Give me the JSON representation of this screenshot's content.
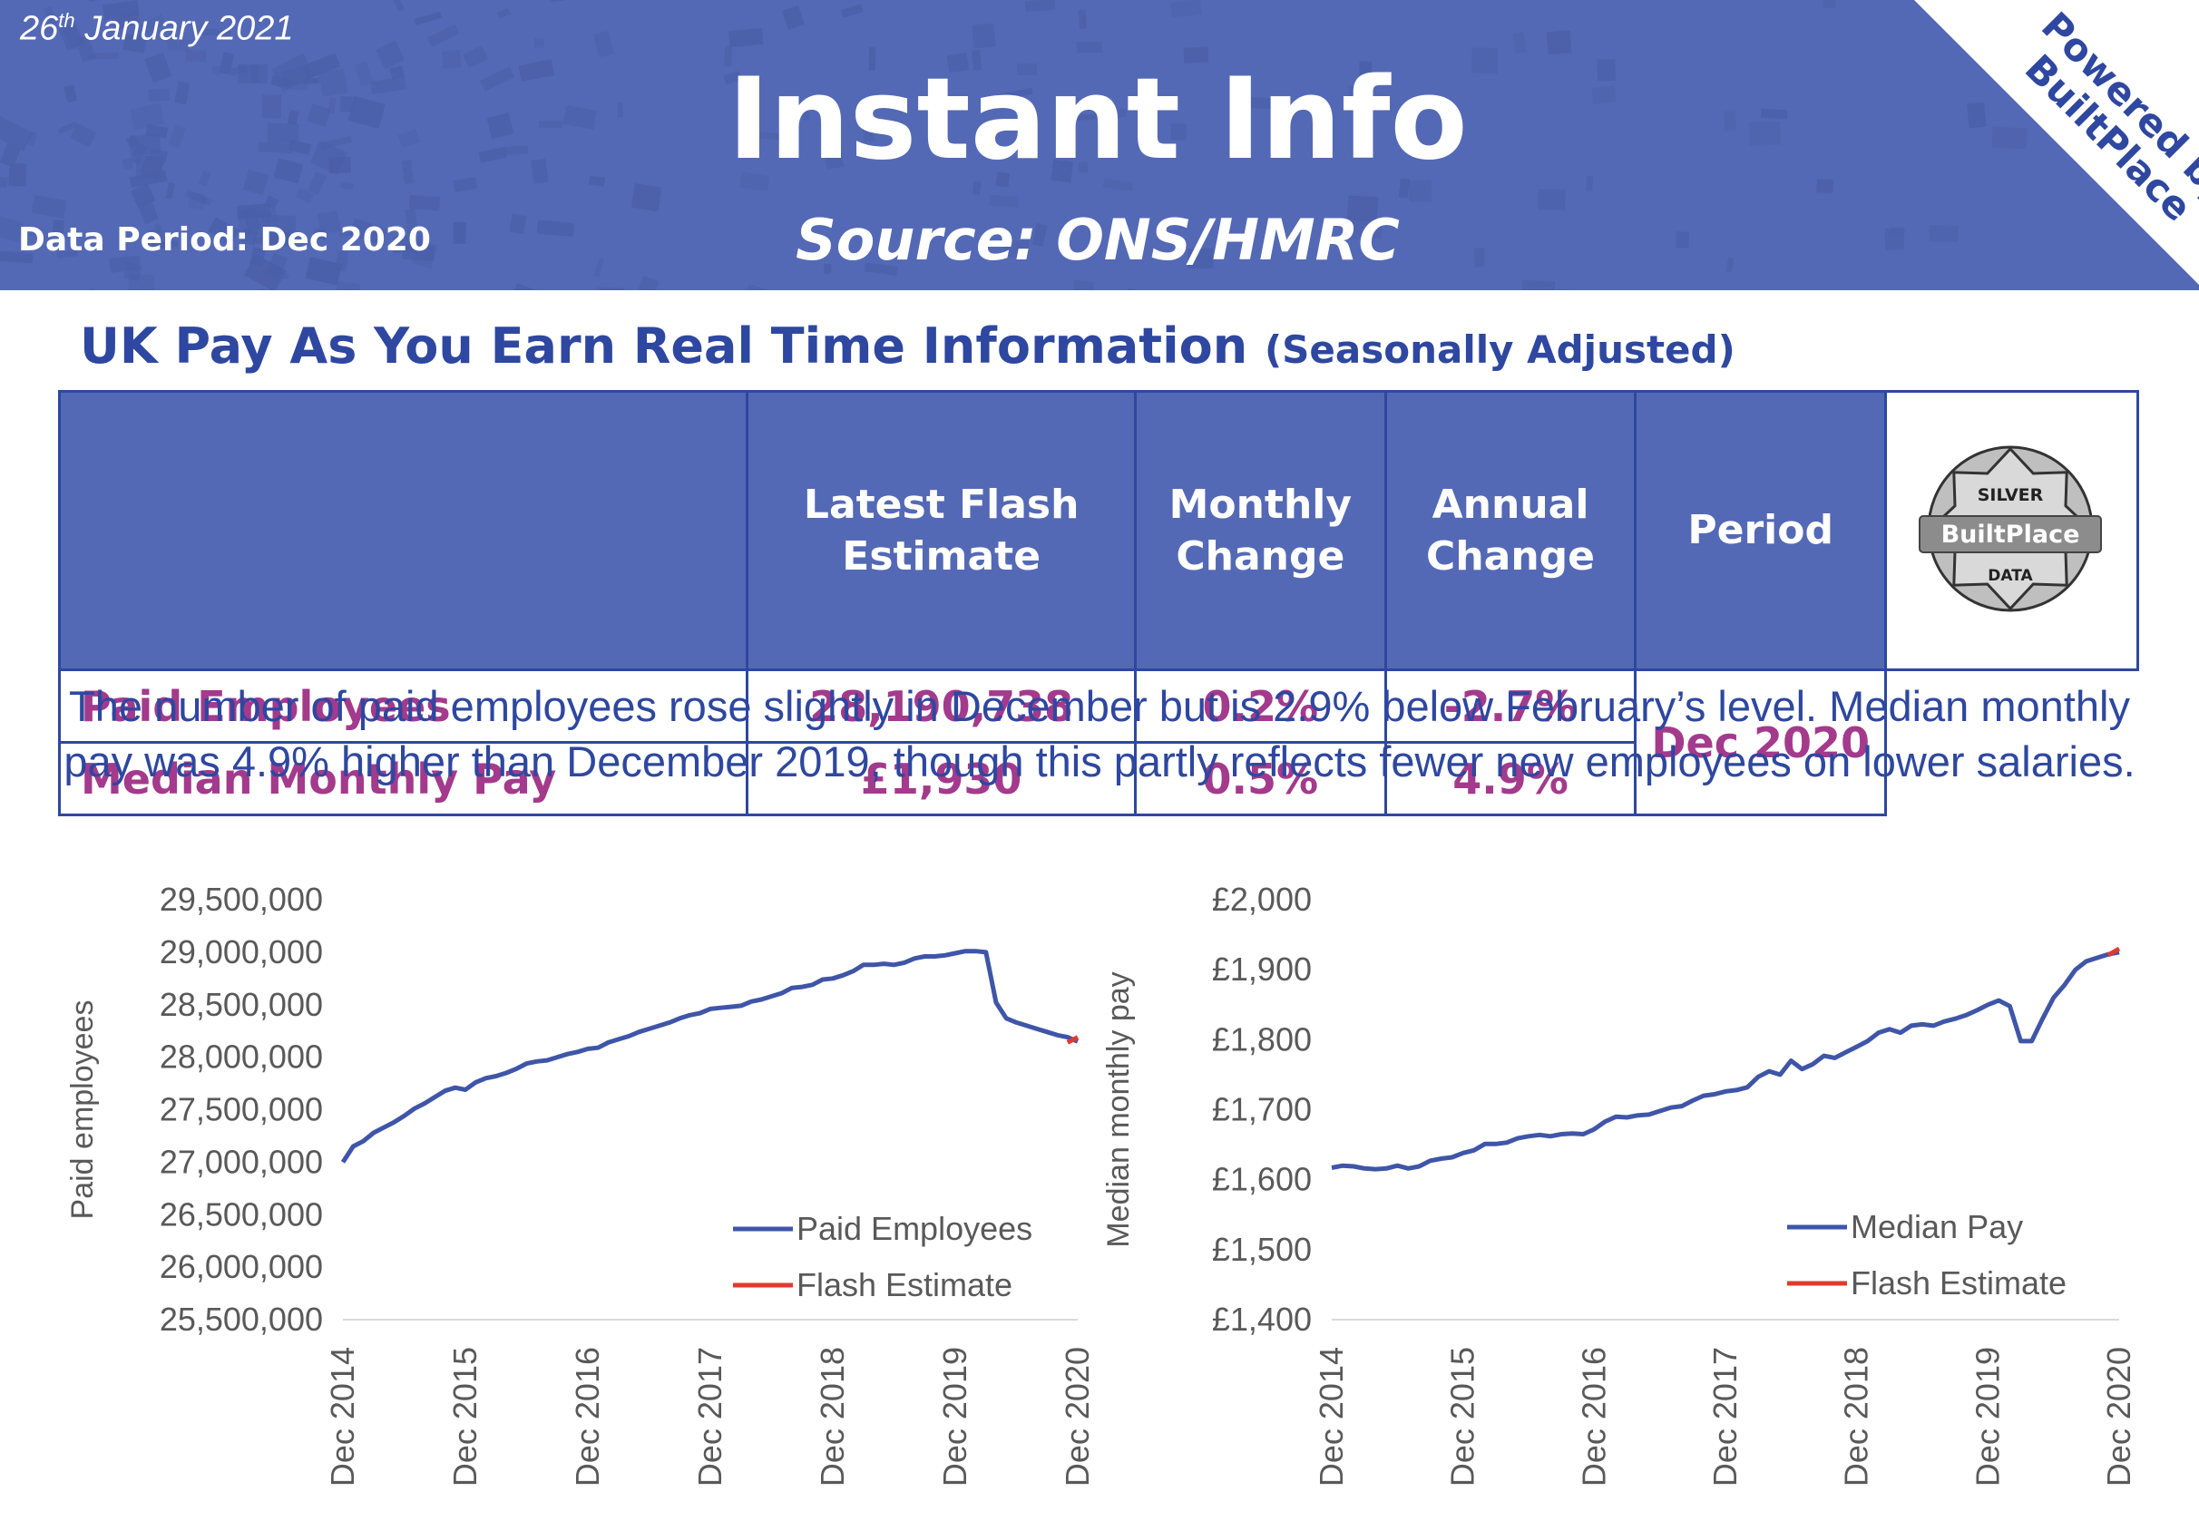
{
  "header": {
    "date_day": "26",
    "date_suffix": "th",
    "date_rest": " January 2021",
    "title": "Instant Info",
    "source": "Source: ONS/HMRC",
    "data_period": "Data Period: Dec 2020",
    "powered_line1": "Powered by",
    "powered_line2": "BuiltPlace",
    "banner_color": "#5469b5",
    "accent_color": "#2e47a0"
  },
  "section": {
    "title": "UK Pay As You Earn Real Time Information",
    "subtitle": "(Seasonally Adjusted)"
  },
  "table": {
    "headers": [
      "",
      "Latest Flash Estimate",
      "Monthly Change",
      "Annual Change",
      "Period"
    ],
    "rows": [
      {
        "label": "Paid Employees",
        "estimate": "28,190,738",
        "monthly": "0.2%",
        "annual": "-2.7%"
      },
      {
        "label": "Median Monthly Pay",
        "estimate": "£1,930",
        "monthly": "0.5%",
        "annual": "4.9%"
      }
    ],
    "period": "Dec 2020",
    "value_color": "#a33a8c",
    "badge": {
      "top": "SILVER",
      "middle": "BuiltPlace",
      "bottom": "DATA",
      "icon": "silver-star-badge-icon"
    }
  },
  "summary": "The number of paid employees rose slightly in December but is 2.9% below February’s level. Median monthly pay was 4.9% higher than December 2019, though this partly reflects fewer new employees on lower salaries.",
  "chart_data": [
    {
      "type": "line",
      "ylabel": "Paid employees",
      "ylim": [
        25500000,
        29500000
      ],
      "yticks": [
        25500000,
        26000000,
        26500000,
        27000000,
        27500000,
        28000000,
        28500000,
        29000000,
        29500000
      ],
      "ytick_labels": [
        "25,500,000",
        "26,000,000",
        "26,500,000",
        "27,000,000",
        "27,500,000",
        "28,000,000",
        "28,500,000",
        "29,000,000",
        "29,500,000"
      ],
      "xlim": [
        "2014-12",
        "2020-12"
      ],
      "xtick_labels": [
        "Dec 2014",
        "Dec 2015",
        "Dec 2016",
        "Dec 2017",
        "Dec 2018",
        "Dec 2019",
        "Dec 2020"
      ],
      "legend_position": "bottom-right",
      "grid": false,
      "series": [
        {
          "name": "Paid Employees",
          "color": "#3f55a8",
          "points": [
            [
              "2014-12",
              27000000
            ],
            [
              "2015-01",
              27150000
            ],
            [
              "2015-02",
              27200000
            ],
            [
              "2015-03",
              27280000
            ],
            [
              "2015-04",
              27330000
            ],
            [
              "2015-05",
              27380000
            ],
            [
              "2015-06",
              27440000
            ],
            [
              "2015-07",
              27510000
            ],
            [
              "2015-08",
              27560000
            ],
            [
              "2015-09",
              27620000
            ],
            [
              "2015-10",
              27680000
            ],
            [
              "2015-11",
              27710000
            ],
            [
              "2015-12",
              27690000
            ],
            [
              "2016-01",
              27760000
            ],
            [
              "2016-02",
              27800000
            ],
            [
              "2016-03",
              27820000
            ],
            [
              "2016-04",
              27850000
            ],
            [
              "2016-05",
              27890000
            ],
            [
              "2016-06",
              27940000
            ],
            [
              "2016-07",
              27960000
            ],
            [
              "2016-08",
              27970000
            ],
            [
              "2016-09",
              28000000
            ],
            [
              "2016-10",
              28030000
            ],
            [
              "2016-11",
              28050000
            ],
            [
              "2016-12",
              28080000
            ],
            [
              "2017-01",
              28090000
            ],
            [
              "2017-02",
              28140000
            ],
            [
              "2017-03",
              28170000
            ],
            [
              "2017-04",
              28200000
            ],
            [
              "2017-05",
              28240000
            ],
            [
              "2017-06",
              28270000
            ],
            [
              "2017-07",
              28300000
            ],
            [
              "2017-08",
              28330000
            ],
            [
              "2017-09",
              28370000
            ],
            [
              "2017-10",
              28400000
            ],
            [
              "2017-11",
              28420000
            ],
            [
              "2017-12",
              28460000
            ],
            [
              "2018-01",
              28470000
            ],
            [
              "2018-02",
              28480000
            ],
            [
              "2018-03",
              28490000
            ],
            [
              "2018-04",
              28530000
            ],
            [
              "2018-05",
              28550000
            ],
            [
              "2018-06",
              28580000
            ],
            [
              "2018-07",
              28610000
            ],
            [
              "2018-08",
              28660000
            ],
            [
              "2018-09",
              28670000
            ],
            [
              "2018-10",
              28690000
            ],
            [
              "2018-11",
              28740000
            ],
            [
              "2018-12",
              28750000
            ],
            [
              "2019-01",
              28780000
            ],
            [
              "2019-02",
              28820000
            ],
            [
              "2019-03",
              28880000
            ],
            [
              "2019-04",
              28880000
            ],
            [
              "2019-05",
              28890000
            ],
            [
              "2019-06",
              28880000
            ],
            [
              "2019-07",
              28900000
            ],
            [
              "2019-08",
              28940000
            ],
            [
              "2019-09",
              28960000
            ],
            [
              "2019-10",
              28960000
            ],
            [
              "2019-11",
              28970000
            ],
            [
              "2019-12",
              28990000
            ],
            [
              "2020-01",
              29010000
            ],
            [
              "2020-02",
              29010000
            ],
            [
              "2020-03",
              29000000
            ],
            [
              "2020-04",
              28520000
            ],
            [
              "2020-05",
              28370000
            ],
            [
              "2020-06",
              28330000
            ],
            [
              "2020-07",
              28300000
            ],
            [
              "2020-08",
              28270000
            ],
            [
              "2020-09",
              28240000
            ],
            [
              "2020-10",
              28210000
            ],
            [
              "2020-11",
              28190000
            ],
            [
              "2020-12",
              28150000
            ]
          ]
        },
        {
          "name": "Flash Estimate",
          "color": "#e03a2f",
          "points": [
            [
              "2020-11",
              28140000
            ],
            [
              "2020-12",
              28190000
            ]
          ]
        }
      ]
    },
    {
      "type": "line",
      "ylabel": "Median monthly pay",
      "ylim": [
        1400,
        2000
      ],
      "yticks": [
        1400,
        1500,
        1600,
        1700,
        1800,
        1900,
        2000
      ],
      "ytick_labels": [
        "£1,400",
        "£1,500",
        "£1,600",
        "£1,700",
        "£1,800",
        "£1,900",
        "£2,000"
      ],
      "xlim": [
        "2014-12",
        "2020-12"
      ],
      "xtick_labels": [
        "Dec 2014",
        "Dec 2015",
        "Dec 2016",
        "Dec 2017",
        "Dec 2018",
        "Dec 2019",
        "Dec 2020"
      ],
      "legend_position": "bottom-right",
      "grid": false,
      "series": [
        {
          "name": "Median Pay",
          "color": "#3f55a8",
          "points": [
            [
              "2014-12",
              1617
            ],
            [
              "2015-01",
              1620
            ],
            [
              "2015-02",
              1619
            ],
            [
              "2015-03",
              1616
            ],
            [
              "2015-04",
              1615
            ],
            [
              "2015-05",
              1616
            ],
            [
              "2015-06",
              1620
            ],
            [
              "2015-07",
              1616
            ],
            [
              "2015-08",
              1619
            ],
            [
              "2015-09",
              1627
            ],
            [
              "2015-10",
              1630
            ],
            [
              "2015-11",
              1632
            ],
            [
              "2015-12",
              1638
            ],
            [
              "2016-01",
              1642
            ],
            [
              "2016-02",
              1651
            ],
            [
              "2016-03",
              1651
            ],
            [
              "2016-04",
              1653
            ],
            [
              "2016-05",
              1659
            ],
            [
              "2016-06",
              1662
            ],
            [
              "2016-07",
              1664
            ],
            [
              "2016-08",
              1662
            ],
            [
              "2016-09",
              1665
            ],
            [
              "2016-10",
              1666
            ],
            [
              "2016-11",
              1665
            ],
            [
              "2016-12",
              1672
            ],
            [
              "2017-01",
              1683
            ],
            [
              "2017-02",
              1690
            ],
            [
              "2017-03",
              1689
            ],
            [
              "2017-04",
              1692
            ],
            [
              "2017-05",
              1693
            ],
            [
              "2017-06",
              1698
            ],
            [
              "2017-07",
              1703
            ],
            [
              "2017-08",
              1705
            ],
            [
              "2017-09",
              1713
            ],
            [
              "2017-10",
              1720
            ],
            [
              "2017-11",
              1722
            ],
            [
              "2017-12",
              1726
            ],
            [
              "2018-01",
              1728
            ],
            [
              "2018-02",
              1732
            ],
            [
              "2018-03",
              1747
            ],
            [
              "2018-04",
              1755
            ],
            [
              "2018-05",
              1750
            ],
            [
              "2018-06",
              1770
            ],
            [
              "2018-07",
              1758
            ],
            [
              "2018-08",
              1765
            ],
            [
              "2018-09",
              1777
            ],
            [
              "2018-10",
              1774
            ],
            [
              "2018-11",
              1782
            ],
            [
              "2018-12",
              1790
            ],
            [
              "2019-01",
              1798
            ],
            [
              "2019-02",
              1810
            ],
            [
              "2019-03",
              1815
            ],
            [
              "2019-04",
              1810
            ],
            [
              "2019-05",
              1820
            ],
            [
              "2019-06",
              1822
            ],
            [
              "2019-07",
              1820
            ],
            [
              "2019-08",
              1826
            ],
            [
              "2019-09",
              1830
            ],
            [
              "2019-10",
              1835
            ],
            [
              "2019-11",
              1842
            ],
            [
              "2019-12",
              1850
            ],
            [
              "2020-01",
              1856
            ],
            [
              "2020-02",
              1848
            ],
            [
              "2020-03",
              1798
            ],
            [
              "2020-04",
              1798
            ],
            [
              "2020-05",
              1830
            ],
            [
              "2020-06",
              1860
            ],
            [
              "2020-07",
              1878
            ],
            [
              "2020-08",
              1900
            ],
            [
              "2020-09",
              1912
            ],
            [
              "2020-10",
              1917
            ],
            [
              "2020-11",
              1922
            ],
            [
              "2020-12",
              1925
            ]
          ]
        },
        {
          "name": "Flash Estimate",
          "color": "#e03a2f",
          "points": [
            [
              "2020-11",
              1921
            ],
            [
              "2020-12",
              1930
            ]
          ]
        }
      ]
    }
  ]
}
